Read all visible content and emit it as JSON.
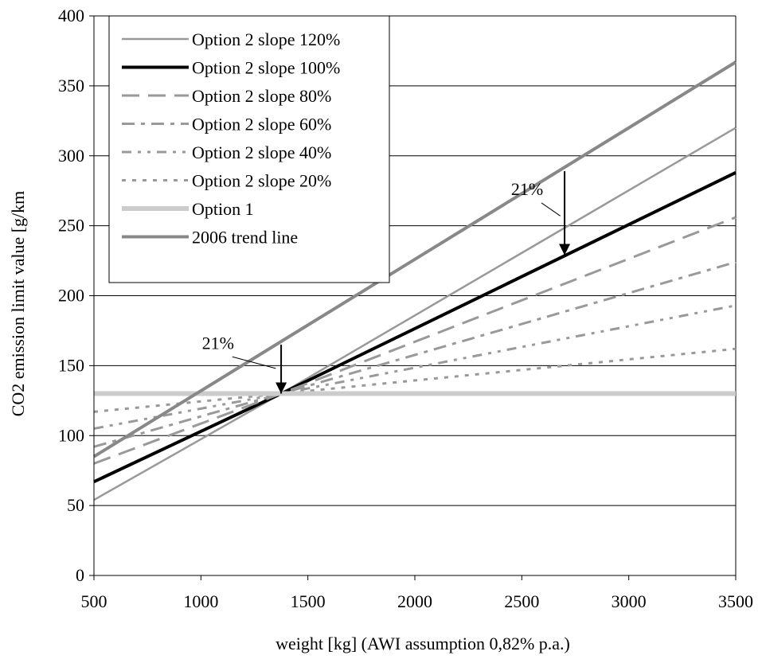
{
  "chart_data": {
    "type": "line",
    "xlabel": "weight [kg] (AWI assumption 0,82% p.a.)",
    "ylabel": "CO2 emission limit value [g/km",
    "xlim": [
      500,
      3500
    ],
    "ylim": [
      0,
      400
    ],
    "x_ticks": [
      "500",
      "1000",
      "1500",
      "2000",
      "2500",
      "3000",
      "3500"
    ],
    "y_ticks": [
      "0",
      "50",
      "100",
      "150",
      "200",
      "250",
      "300",
      "350",
      "400"
    ],
    "grid": "horizontal",
    "legend_position": "top-left",
    "series": [
      {
        "name": "Option 2 slope 120%",
        "x": [
          500,
          1375,
          3500
        ],
        "y": [
          54,
          130,
          320
        ],
        "color": "#999999",
        "dash": "solid",
        "width": "thin"
      },
      {
        "name": "Option 2 slope 100%",
        "x": [
          500,
          1375,
          3500
        ],
        "y": [
          67,
          130,
          288
        ],
        "color": "#000000",
        "dash": "solid",
        "width": "thick"
      },
      {
        "name": "Option 2 slope 80%",
        "x": [
          500,
          1375,
          3500
        ],
        "y": [
          80,
          130,
          256
        ],
        "color": "#999999",
        "dash": "long-dash",
        "width": "medium"
      },
      {
        "name": "Option 2 slope 60%",
        "x": [
          500,
          1375,
          3500
        ],
        "y": [
          92,
          130,
          224
        ],
        "color": "#999999",
        "dash": "dash-dot",
        "width": "medium"
      },
      {
        "name": "Option 2 slope 40%",
        "x": [
          500,
          1375,
          3500
        ],
        "y": [
          105,
          130,
          193
        ],
        "color": "#999999",
        "dash": "dash-dot-dot",
        "width": "medium"
      },
      {
        "name": "Option 2 slope 20%",
        "x": [
          500,
          1375,
          3500
        ],
        "y": [
          117,
          130,
          162
        ],
        "color": "#999999",
        "dash": "dotted",
        "width": "medium"
      },
      {
        "name": "Option 1",
        "x": [
          500,
          3500
        ],
        "y": [
          130,
          130
        ],
        "color": "#cccccc",
        "dash": "solid",
        "width": "extra-thick"
      },
      {
        "name": "2006 trend line",
        "x": [
          500,
          3500
        ],
        "y": [
          85,
          367
        ],
        "color": "#888888",
        "dash": "solid",
        "width": "thick"
      }
    ],
    "annotations": [
      {
        "text": "21%",
        "arrow_x": 1375,
        "arrow_from_y": 165,
        "arrow_to_y": 130,
        "label_x": 1080,
        "label_y": 162,
        "leader_to_x": 1350,
        "leader_to_y": 148
      },
      {
        "text": "21%",
        "arrow_x": 2700,
        "arrow_from_y": 289,
        "arrow_to_y": 229,
        "label_x": 2525,
        "label_y": 272,
        "leader_to_x": 2680,
        "leader_to_y": 257
      }
    ]
  }
}
